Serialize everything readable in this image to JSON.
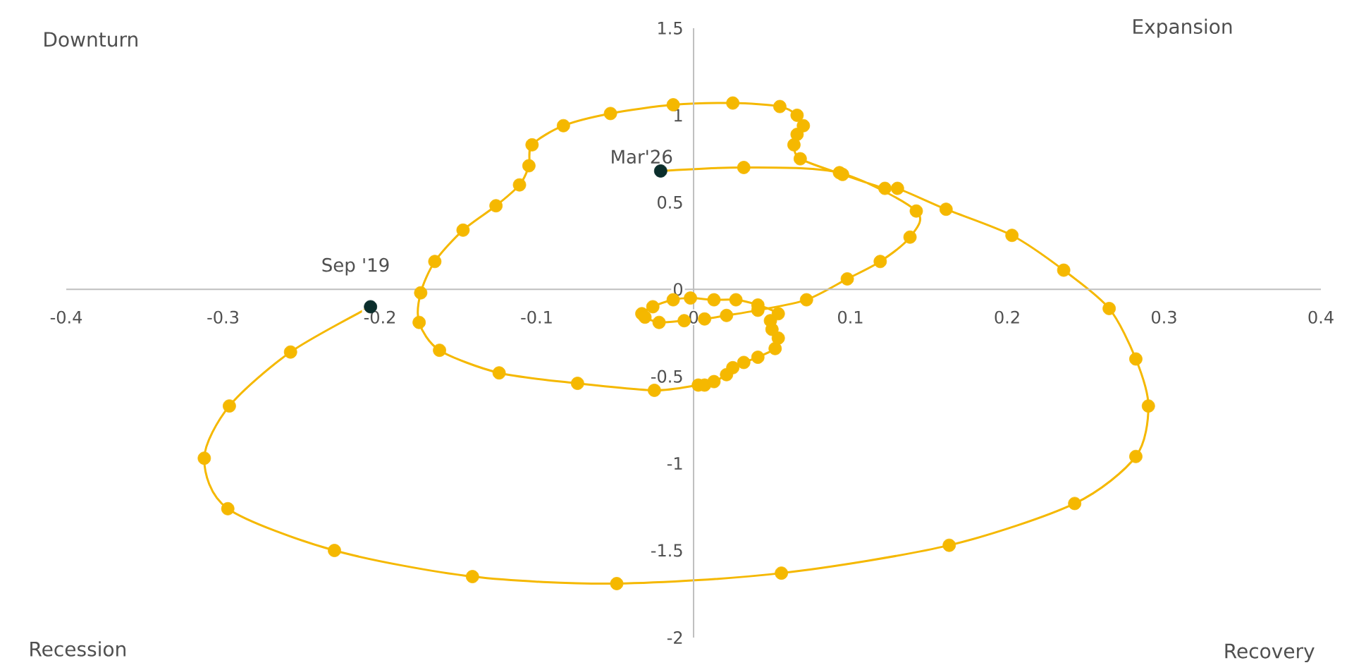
{
  "chart_data": {
    "type": "line",
    "marker": "circle",
    "xlim": [
      -0.4,
      0.4
    ],
    "ylim": [
      -2,
      1.5
    ],
    "xticks": [
      -0.4,
      -0.3,
      -0.2,
      -0.1,
      0,
      0.1,
      0.2,
      0.3,
      0.4
    ],
    "yticks": [
      -2,
      -1.5,
      -1,
      -0.5,
      0,
      0.5,
      1,
      1.5
    ],
    "series": [
      {
        "color": "#f5b800",
        "colors": [
          "#0b2e2c",
          "#f5b800",
          "#f5b800",
          "#f5b800",
          "#f5b800",
          "#f5b800",
          "#f5b800",
          "#f5b800",
          "#f5b800",
          "#f5b800",
          "#f5b800",
          "#f5b800",
          "#f5b800",
          "#f5b800",
          "#f5b800",
          "#f5b800",
          "#f5b800",
          "#f5b800",
          "#f5b800",
          "#f5b800",
          "#f5b800",
          "#f5b800",
          "#f5b800",
          "#f5b800",
          "#f5b800",
          "#f5b800",
          "#f5b800",
          "#f5b800",
          "#f5b800",
          "#f5b800",
          "#f5b800",
          "#f5b800",
          "#f5b800",
          "#f5b800",
          "#f5b800",
          "#f5b800",
          "#f5b800",
          "#f5b800",
          "#f5b800",
          "#f5b800",
          "#f5b800",
          "#f5b800",
          "#f5b800",
          "#f5b800",
          "#f5b800",
          "#f5b800",
          "#f5b800",
          "#f5b800",
          "#f5b800",
          "#f5b800",
          "#f5b800",
          "#f5b800",
          "#f5b800",
          "#f5b800",
          "#f5b800",
          "#f5b800",
          "#f5b800",
          "#f5b800",
          "#f5b800",
          "#f5b800",
          "#f5b800",
          "#f5b800",
          "#f5b800",
          "#f5b800",
          "#f5b800",
          "#f5b800",
          "#f5b800",
          "#f5b800",
          "#f5b800",
          "#f5b800",
          "#f5b800",
          "#f5b800",
          "#f5b800",
          "#f5b800",
          "#f5b800",
          "#0b2e2c"
        ],
        "x": [
          -0.206,
          -0.257,
          -0.296,
          -0.312,
          -0.297,
          -0.229,
          -0.141,
          -0.049,
          0.056,
          0.163,
          0.243,
          0.282,
          0.29,
          0.282,
          0.265,
          0.236,
          0.203,
          0.161,
          0.13,
          0.122,
          0.095,
          0.068,
          0.064,
          0.066,
          0.07,
          0.066,
          0.055,
          0.025,
          -0.013,
          -0.053,
          -0.083,
          -0.103,
          -0.105,
          -0.111,
          -0.126,
          -0.147,
          -0.165,
          -0.174,
          -0.175,
          -0.162,
          -0.124,
          -0.074,
          -0.025,
          0.003,
          0.007,
          0.013,
          0.021,
          0.025,
          0.032,
          0.041,
          0.052,
          0.054,
          0.05,
          0.049,
          0.054,
          0.041,
          0.027,
          0.013,
          -0.002,
          -0.013,
          -0.026,
          -0.033,
          -0.031,
          -0.022,
          -0.006,
          0.007,
          0.021,
          0.041,
          0.072,
          0.098,
          0.119,
          0.138,
          0.142,
          0.093,
          0.032,
          -0.021
        ],
        "values": [
          -0.1,
          -0.36,
          -0.67,
          -0.97,
          -1.26,
          -1.5,
          -1.65,
          -1.69,
          -1.63,
          -1.47,
          -1.23,
          -0.96,
          -0.67,
          -0.4,
          -0.11,
          0.11,
          0.31,
          0.46,
          0.58,
          0.58,
          0.66,
          0.75,
          0.83,
          0.89,
          0.94,
          1.0,
          1.05,
          1.07,
          1.06,
          1.01,
          0.94,
          0.83,
          0.71,
          0.6,
          0.48,
          0.34,
          0.16,
          -0.02,
          -0.19,
          -0.35,
          -0.48,
          -0.54,
          -0.58,
          -0.55,
          -0.55,
          -0.53,
          -0.49,
          -0.45,
          -0.42,
          -0.39,
          -0.34,
          -0.28,
          -0.23,
          -0.18,
          -0.14,
          -0.09,
          -0.06,
          -0.06,
          -0.05,
          -0.06,
          -0.1,
          -0.14,
          -0.16,
          -0.19,
          -0.18,
          -0.17,
          -0.15,
          -0.12,
          -0.06,
          0.06,
          0.16,
          0.3,
          0.45,
          0.67,
          0.7,
          0.68
        ]
      }
    ],
    "annotations": [
      "Downturn",
      "Expansion",
      "Recession",
      "Recovery",
      {
        "text": "Sep '19",
        "x": -0.206,
        "y": -0.1
      },
      {
        "text": "Mar'26",
        "x": -0.021,
        "y": 0.68
      }
    ]
  }
}
